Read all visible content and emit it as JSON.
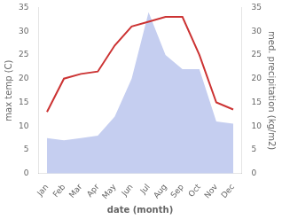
{
  "chart_data": {
    "type": "line",
    "xlabel": "date (month)",
    "ylabel": "max temp (C)",
    "y2label": "med. precipitation (kg/m2)",
    "categories": [
      "Jan",
      "Feb",
      "Mar",
      "Apr",
      "May",
      "Jun",
      "Jul",
      "Aug",
      "Sep",
      "Oct",
      "Nov",
      "Dec"
    ],
    "series": [
      {
        "type": "area",
        "axis": "y2",
        "color": "#c5cef0",
        "values": [
          7.5,
          7.0,
          7.5,
          8.0,
          12.0,
          20.0,
          34.0,
          25.0,
          22.0,
          22.0,
          11.0,
          10.5
        ]
      },
      {
        "type": "line",
        "color": "#cc3333",
        "values": [
          13.0,
          20.0,
          21.0,
          21.5,
          27.0,
          31.0,
          32.0,
          33.0,
          33.0,
          25.0,
          15.0,
          13.5
        ]
      }
    ],
    "ylim": [
      0,
      35
    ],
    "yticks": [
      0,
      5,
      10,
      15,
      20,
      25,
      30,
      35
    ],
    "y2lim": [
      0,
      35
    ],
    "y2ticks": [
      0,
      5,
      10,
      15,
      20,
      25,
      30,
      35
    ],
    "grid": false
  }
}
